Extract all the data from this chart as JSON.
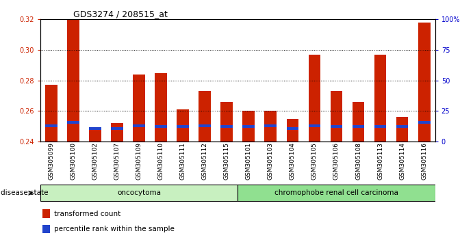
{
  "title": "GDS3274 / 208515_at",
  "samples": [
    "GSM305099",
    "GSM305100",
    "GSM305102",
    "GSM305107",
    "GSM305109",
    "GSM305110",
    "GSM305111",
    "GSM305112",
    "GSM305115",
    "GSM305101",
    "GSM305103",
    "GSM305104",
    "GSM305105",
    "GSM305106",
    "GSM305108",
    "GSM305113",
    "GSM305114",
    "GSM305116"
  ],
  "red_values": [
    0.277,
    0.32,
    0.249,
    0.252,
    0.284,
    0.285,
    0.261,
    0.273,
    0.266,
    0.26,
    0.26,
    0.255,
    0.297,
    0.273,
    0.266,
    0.297,
    0.256,
    0.318
  ],
  "blue_heights": [
    0.0018,
    0.0018,
    0.0018,
    0.0018,
    0.0018,
    0.0018,
    0.0018,
    0.0018,
    0.0018,
    0.0018,
    0.0018,
    0.0018,
    0.0018,
    0.0018,
    0.0018,
    0.0018,
    0.0018,
    0.0018
  ],
  "blue_bottoms": [
    0.2495,
    0.2515,
    0.2475,
    0.2475,
    0.2495,
    0.249,
    0.2488,
    0.2495,
    0.2488,
    0.2488,
    0.2495,
    0.2475,
    0.2495,
    0.2488,
    0.2488,
    0.2488,
    0.2488,
    0.2515
  ],
  "bar_bottom": 0.24,
  "ymin": 0.24,
  "ymax": 0.32,
  "yticks": [
    0.24,
    0.26,
    0.28,
    0.3,
    0.32
  ],
  "right_ytick_pcts": [
    0,
    25,
    50,
    75,
    100
  ],
  "right_yticklabels": [
    "0",
    "25",
    "50",
    "75",
    "100%"
  ],
  "groups": [
    {
      "label": "oncocytoma",
      "start": 0,
      "end": 9,
      "color": "#c8f0c0"
    },
    {
      "label": "chromophobe renal cell carcinoma",
      "start": 9,
      "end": 18,
      "color": "#90e090"
    }
  ],
  "disease_state_label": "disease state",
  "legend_red_label": "transformed count",
  "legend_blue_label": "percentile rank within the sample",
  "bar_color_red": "#cc2200",
  "bar_color_blue": "#2244cc",
  "tick_label_color_left": "#cc2200",
  "tick_label_color_right": "#0000cc",
  "bar_width": 0.55,
  "title_fontsize": 9,
  "tick_fontsize": 7,
  "xlabel_fontsize": 6.5,
  "label_fontsize": 7.5
}
